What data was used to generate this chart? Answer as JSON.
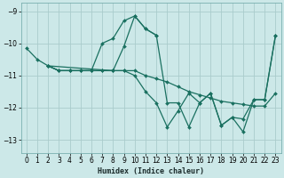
{
  "bg_color": "#cce8e8",
  "grid_color": "#aacccc",
  "line_color": "#1a7060",
  "xlim": [
    -0.5,
    23.5
  ],
  "ylim": [
    -13.4,
    -8.75
  ],
  "xticks": [
    0,
    1,
    2,
    3,
    4,
    5,
    6,
    7,
    8,
    9,
    10,
    11,
    12,
    13,
    14,
    15,
    16,
    17,
    18,
    19,
    20,
    21,
    22,
    23
  ],
  "yticks": [
    -13,
    -12,
    -11,
    -10,
    -9
  ],
  "xlabel": "Humidex (Indice chaleur)",
  "lines": [
    {
      "x": [
        0,
        1,
        2,
        3,
        4,
        5,
        6,
        7,
        8,
        9,
        10,
        11,
        12
      ],
      "y": [
        -10.15,
        -10.5,
        -10.7,
        -10.85,
        -10.85,
        -10.85,
        -10.85,
        -10.0,
        -9.85,
        -9.3,
        -9.15,
        -9.55,
        -9.75
      ]
    },
    {
      "x": [
        2,
        3,
        4,
        5,
        6,
        7,
        8,
        9,
        10,
        11,
        12,
        13,
        14,
        15,
        16,
        17,
        18,
        19,
        20,
        21,
        22,
        23
      ],
      "y": [
        -10.7,
        -10.85,
        -10.85,
        -10.85,
        -10.85,
        -10.85,
        -10.85,
        -10.85,
        -11.0,
        -11.5,
        -11.85,
        -12.6,
        -12.1,
        -11.55,
        -11.85,
        -11.55,
        -12.55,
        -12.3,
        -12.75,
        -11.75,
        -11.75,
        -9.75
      ]
    },
    {
      "x": [
        2,
        3,
        4,
        5,
        6,
        7,
        8,
        9,
        10,
        11,
        12,
        13,
        14,
        15,
        16,
        17,
        18,
        19,
        20,
        21,
        22,
        23
      ],
      "y": [
        -10.7,
        -10.85,
        -10.85,
        -10.85,
        -10.85,
        -10.85,
        -10.85,
        -10.85,
        -10.85,
        -11.0,
        -11.1,
        -11.2,
        -11.35,
        -11.5,
        -11.6,
        -11.7,
        -11.8,
        -11.85,
        -11.9,
        -11.95,
        -11.95,
        -11.55
      ]
    },
    {
      "x": [
        2,
        8,
        9,
        10,
        11,
        12,
        13,
        14,
        15,
        16,
        17,
        18,
        19,
        20,
        21,
        22,
        23
      ],
      "y": [
        -10.7,
        -10.85,
        -10.1,
        -9.15,
        -9.55,
        -9.75,
        -11.85,
        -11.85,
        -12.6,
        -11.85,
        -11.55,
        -12.55,
        -12.3,
        -12.35,
        -11.75,
        -11.75,
        -9.75
      ]
    }
  ]
}
